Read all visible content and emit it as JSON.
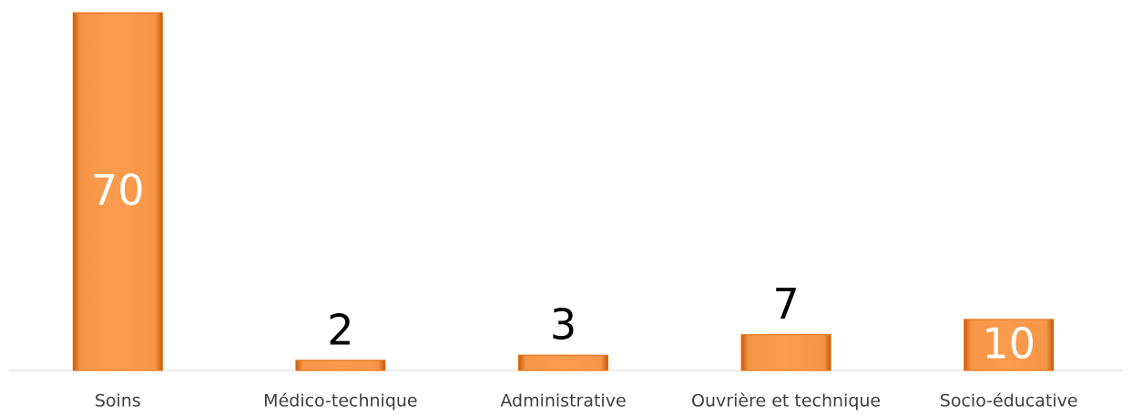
{
  "chart_data": {
    "type": "bar",
    "categories": [
      "Soins",
      "Médico-technique",
      "Administrative",
      "Ouvrière et technique",
      "Socio-éducative"
    ],
    "values": [
      70,
      2,
      3,
      7,
      10
    ],
    "color": "#f79646"
  }
}
